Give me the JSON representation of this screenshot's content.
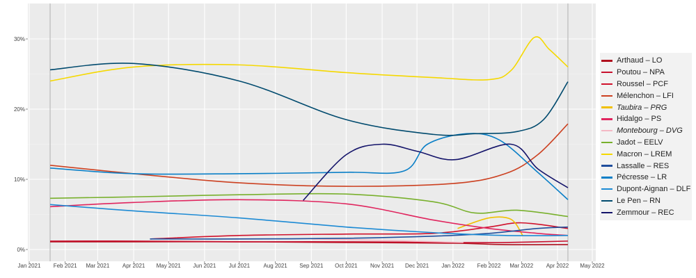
{
  "chart_data": {
    "type": "line",
    "title": "",
    "xlabel": "",
    "ylabel": "",
    "x_range": [
      "2021-01-01",
      "2022-05-01"
    ],
    "ylim": [
      -1.5,
      35
    ],
    "y_ticks": [
      0,
      10,
      20,
      30
    ],
    "y_tick_labels": [
      "0%",
      "10%",
      "20%",
      "30%"
    ],
    "x_ticks": [
      "2021-01-01",
      "2021-02-01",
      "2021-03-01",
      "2021-04-01",
      "2021-05-01",
      "2021-06-01",
      "2021-07-01",
      "2021-08-01",
      "2021-09-01",
      "2021-10-01",
      "2021-11-01",
      "2021-12-01",
      "2022-01-01",
      "2022-02-01",
      "2022-03-01",
      "2022-04-01",
      "2022-05-01"
    ],
    "x_tick_labels": [
      "Jan 2021",
      "Feb 2021",
      "Mar 2021",
      "Apr 2021",
      "May 2021",
      "Jun 2021",
      "Jul 2021",
      "Aug 2021",
      "Sep 2021",
      "Oct 2021",
      "Nov 2021",
      "Dec 2021",
      "Jan 2022",
      "Feb 2022",
      "Mar 2022",
      "Apr 2022",
      "May 2022"
    ],
    "vertical_markers": [
      "2021-01-19",
      "2022-04-10"
    ],
    "grid": true,
    "legend_position": "right",
    "series": [
      {
        "name": "Arthaud – LO",
        "italic": false,
        "color": "#b0101e",
        "x": [
          "2021-01-19",
          "2021-04-01",
          "2021-07-01",
          "2021-10-01",
          "2022-01-01",
          "2022-02-15",
          "2022-04-10"
        ],
        "values": [
          1.1,
          1.1,
          1.1,
          1.0,
          0.9,
          0.7,
          0.7
        ]
      },
      {
        "name": "Poutou – NPA",
        "italic": false,
        "color": "#c8102e",
        "x": [
          "2021-01-19",
          "2021-04-01",
          "2021-07-01",
          "2021-10-01",
          "2022-01-01",
          "2022-02-15",
          "2022-04-10"
        ],
        "values": [
          1.2,
          1.2,
          1.1,
          1.1,
          1.0,
          1.0,
          1.2
        ]
      },
      {
        "name": "Roussel – PCF",
        "italic": false,
        "color": "#d0112b",
        "x": [
          "2021-04-15",
          "2021-07-01",
          "2021-10-01",
          "2021-12-15",
          "2022-02-01",
          "2022-03-01",
          "2022-04-10"
        ],
        "values": [
          1.5,
          2.0,
          2.2,
          2.3,
          3.2,
          3.8,
          3.0
        ]
      },
      {
        "name": "Mélenchon – LFI",
        "italic": false,
        "color": "#cc4020",
        "x": [
          "2021-01-19",
          "2021-04-01",
          "2021-07-01",
          "2021-10-01",
          "2022-01-01",
          "2022-02-15",
          "2022-03-15",
          "2022-04-10"
        ],
        "values": [
          12.0,
          10.8,
          9.5,
          9.0,
          9.4,
          10.8,
          13.5,
          17.9
        ]
      },
      {
        "name": "Taubira – PRG",
        "italic": true,
        "color": "#f0c000",
        "x": [
          "2022-01-05",
          "2022-02-01",
          "2022-02-20",
          "2022-03-02"
        ],
        "values": [
          3.0,
          4.5,
          4.3,
          2.0
        ]
      },
      {
        "name": "Hidalgo – PS",
        "italic": false,
        "color": "#e0255e",
        "x": [
          "2021-01-19",
          "2021-04-01",
          "2021-07-01",
          "2021-10-01",
          "2021-12-15",
          "2022-02-01",
          "2022-03-15",
          "2022-04-10"
        ],
        "values": [
          6.1,
          6.7,
          7.1,
          6.5,
          4.2,
          3.0,
          2.3,
          2.0
        ]
      },
      {
        "name": "Montebourg – DVG",
        "italic": true,
        "color": "#f4b8c4",
        "x": [
          "2021-09-01",
          "2021-11-01",
          "2022-01-10"
        ],
        "values": [
          1.5,
          1.3,
          1.0
        ]
      },
      {
        "name": "Jadot – EELV",
        "italic": false,
        "color": "#78b02c",
        "x": [
          "2021-01-19",
          "2021-04-01",
          "2021-07-01",
          "2021-10-01",
          "2021-12-15",
          "2022-01-20",
          "2022-02-25",
          "2022-04-10"
        ],
        "values": [
          7.3,
          7.5,
          7.8,
          7.9,
          6.8,
          5.2,
          5.6,
          4.7
        ]
      },
      {
        "name": "Macron – LREM",
        "italic": false,
        "color": "#f5d800",
        "x": [
          "2021-01-19",
          "2021-04-01",
          "2021-07-01",
          "2021-10-01",
          "2021-12-15",
          "2022-02-01",
          "2022-02-20",
          "2022-03-12",
          "2022-03-25",
          "2022-04-10"
        ],
        "values": [
          24.0,
          26.0,
          26.3,
          25.2,
          24.5,
          24.2,
          25.5,
          30.2,
          28.5,
          26.0
        ]
      },
      {
        "name": "Lassalle – RES",
        "italic": false,
        "color": "#1f4e9c",
        "x": [
          "2021-04-15",
          "2021-07-01",
          "2021-10-01",
          "2021-12-15",
          "2022-02-01",
          "2022-03-15",
          "2022-04-10"
        ],
        "values": [
          1.5,
          1.5,
          1.6,
          1.9,
          2.3,
          3.0,
          3.2
        ]
      },
      {
        "name": "Pécresse – LR",
        "italic": false,
        "color": "#0a7fc7",
        "x": [
          "2021-01-19",
          "2021-04-01",
          "2021-07-01",
          "2021-10-01",
          "2021-11-20",
          "2021-12-10",
          "2022-01-13",
          "2022-02-10",
          "2022-03-15",
          "2022-04-10"
        ],
        "values": [
          11.6,
          10.8,
          10.8,
          11.0,
          11.2,
          15.0,
          16.5,
          15.6,
          11.0,
          7.1
        ]
      },
      {
        "name": "Dupont-Aignan – DLF",
        "italic": false,
        "color": "#1c8ad4",
        "x": [
          "2021-01-19",
          "2021-04-01",
          "2021-07-01",
          "2021-10-01",
          "2021-12-15",
          "2022-02-15",
          "2022-04-10"
        ],
        "values": [
          6.4,
          5.5,
          4.5,
          3.2,
          2.4,
          2.0,
          2.0
        ]
      },
      {
        "name": "Le Pen – RN",
        "italic": false,
        "color": "#004a6e",
        "x": [
          "2021-01-19",
          "2021-04-01",
          "2021-07-01",
          "2021-10-01",
          "2021-12-15",
          "2022-01-20",
          "2022-02-25",
          "2022-03-20",
          "2022-04-10"
        ],
        "values": [
          25.6,
          26.5,
          24.0,
          18.5,
          16.4,
          16.5,
          16.8,
          18.5,
          23.9
        ]
      },
      {
        "name": "Zemmour – REC",
        "italic": false,
        "color": "#14146a",
        "x": [
          "2021-08-25",
          "2021-10-01",
          "2021-11-01",
          "2021-12-01",
          "2022-01-03",
          "2022-02-20",
          "2022-03-15",
          "2022-04-10"
        ],
        "values": [
          7.0,
          13.5,
          15.0,
          14.0,
          12.8,
          15.0,
          11.5,
          8.8
        ]
      }
    ]
  }
}
